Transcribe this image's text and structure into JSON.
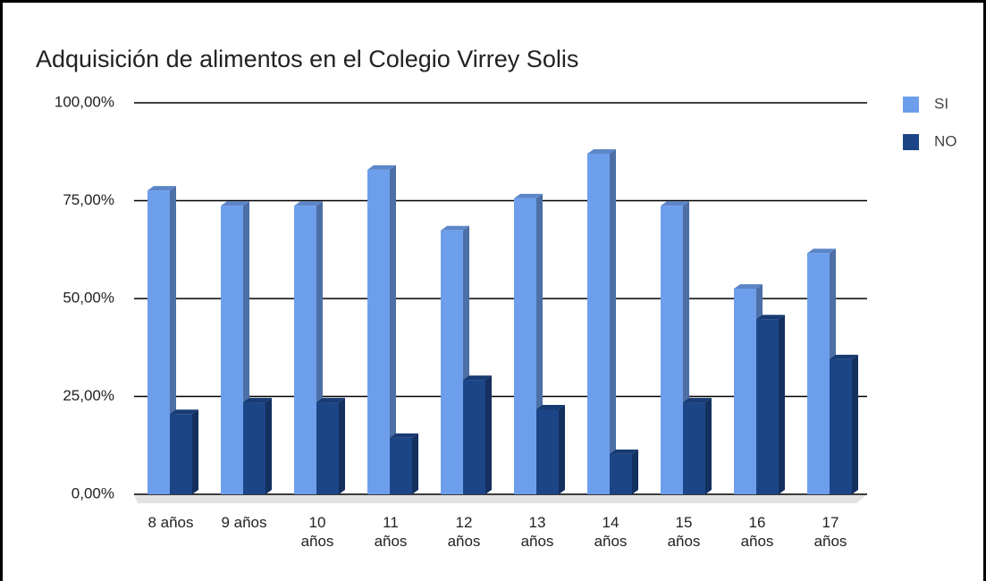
{
  "chart_data": {
    "type": "bar3d",
    "title": "Adquisición de alimentos en el Colegio Virrey Solis",
    "categories": [
      "8 años",
      "9 años",
      "10 años",
      "11 años",
      "12 años",
      "13 años",
      "14 años",
      "15 años",
      "16 años",
      "17 años"
    ],
    "series": [
      {
        "name": "SI",
        "color": "#6d9eeb",
        "values": [
          77.6,
          73.7,
          73.7,
          82.9,
          67.4,
          75.6,
          87.0,
          73.7,
          52.5,
          61.6
        ]
      },
      {
        "name": "NO",
        "color": "#1c4587",
        "values": [
          20.5,
          23.5,
          23.5,
          14.4,
          29.2,
          21.7,
          10.3,
          23.5,
          44.7,
          34.5
        ]
      }
    ],
    "ylim": [
      0,
      100
    ],
    "yticks": [
      {
        "value": 0,
        "label": "0,00%"
      },
      {
        "value": 25,
        "label": "25,00%"
      },
      {
        "value": 50,
        "label": "50,00%"
      },
      {
        "value": 75,
        "label": "75,00%"
      },
      {
        "value": 100,
        "label": "100,00%"
      }
    ],
    "grid": true,
    "legend": "right"
  }
}
